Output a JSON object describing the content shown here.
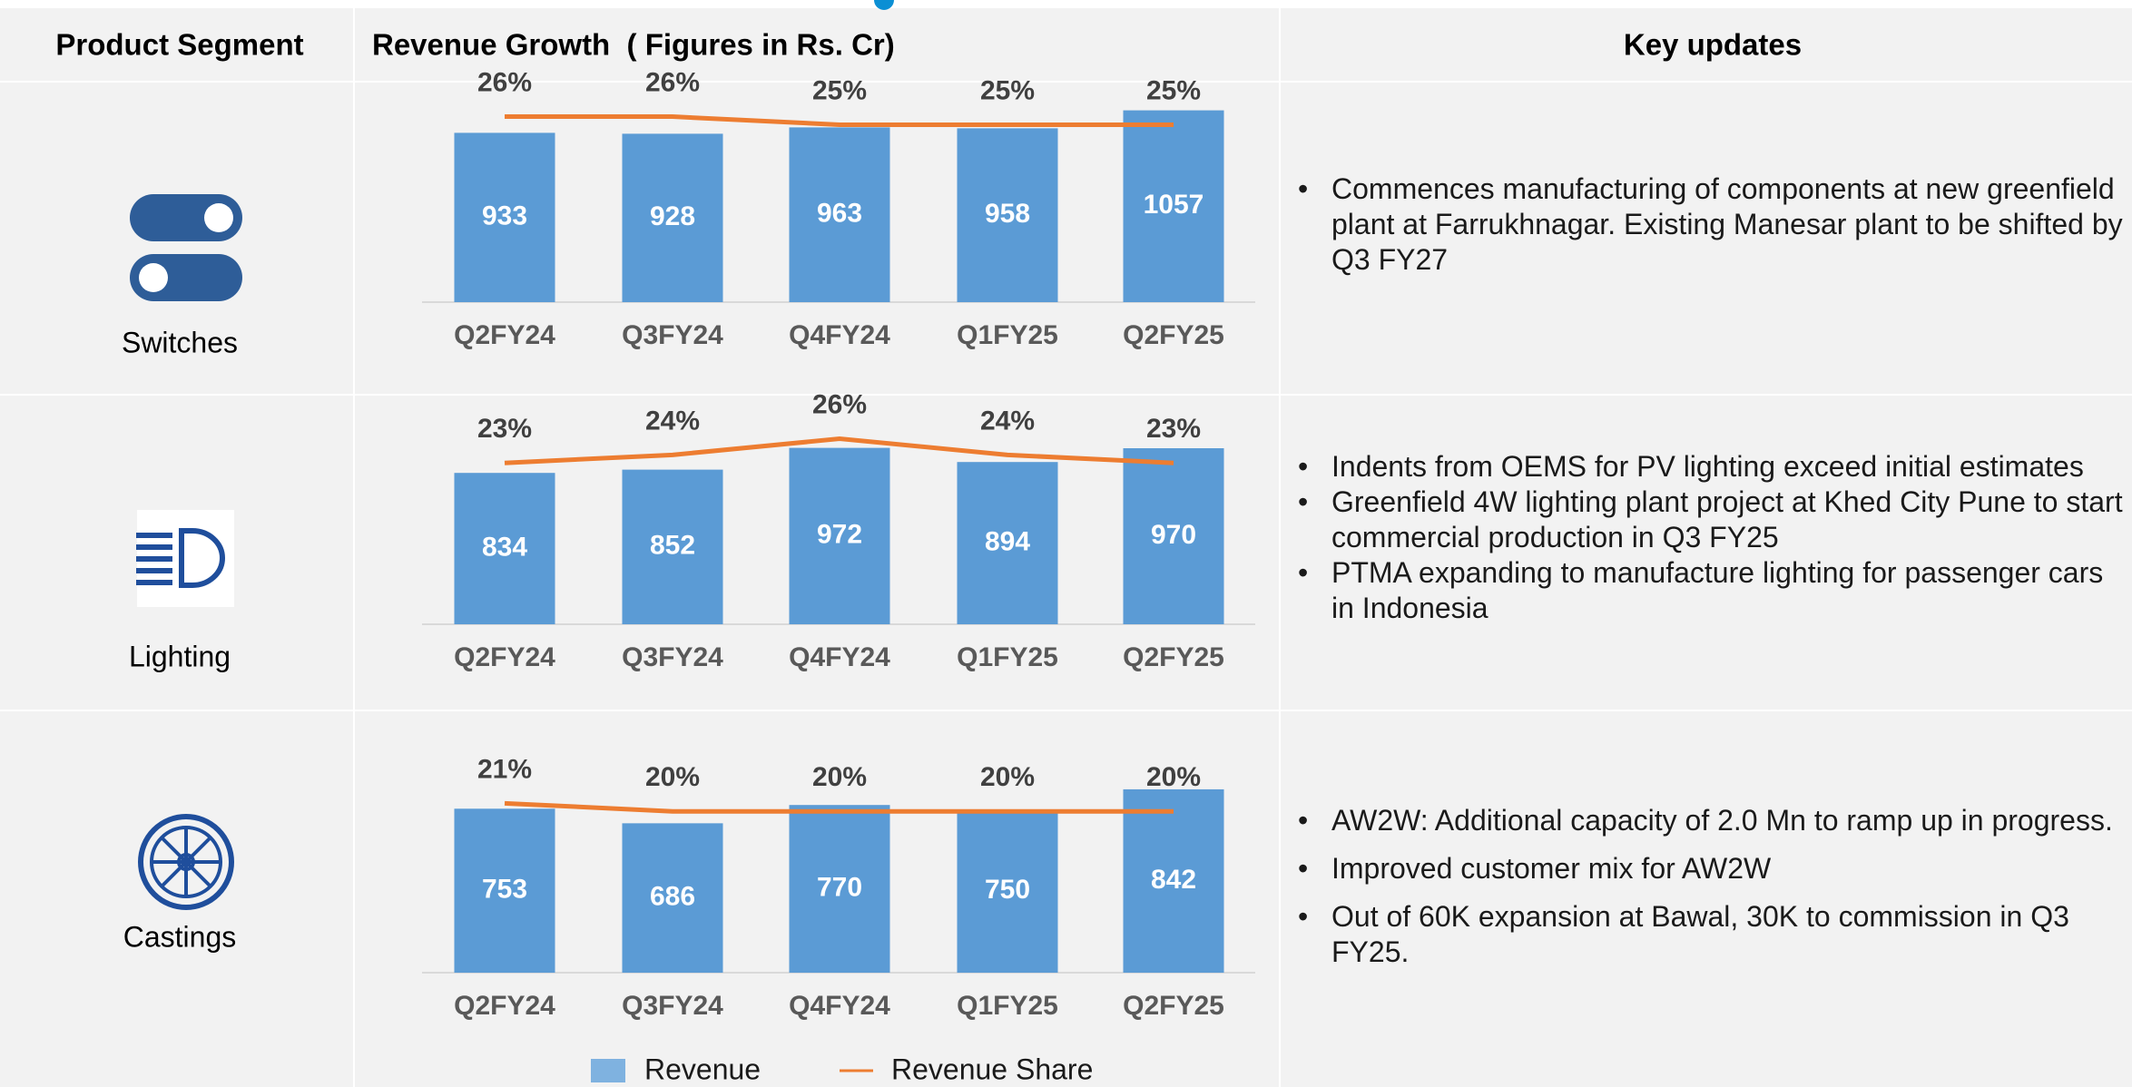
{
  "header": {
    "segment": "Product Segment",
    "growth": "Revenue Growth  ( Figures in Rs. Cr)",
    "updates": "Key updates"
  },
  "chart_data": [
    {
      "type": "bar",
      "segment": "Switches",
      "categories": [
        "Q2FY24",
        "Q3FY24",
        "Q4FY24",
        "Q1FY25",
        "Q2FY25"
      ],
      "ylim": [
        0,
        1200
      ],
      "y2lim": [
        3,
        30
      ],
      "series": [
        {
          "name": "Revenue",
          "color": "#5b9bd5",
          "values": [
            933,
            928,
            963,
            958,
            1057
          ]
        },
        {
          "name": "Revenue Share",
          "type": "line",
          "axis": "y2",
          "color": "#ed7d31",
          "values": [
            26,
            26,
            25,
            25,
            25
          ],
          "value_labels": [
            "26%",
            "26%",
            "25%",
            "25%",
            "25%"
          ]
        }
      ],
      "key_updates": [
        "Commences manufacturing of components at new greenfield plant at Farrukhnagar. Existing Manesar plant to be shifted by Q3 FY27"
      ]
    },
    {
      "type": "bar",
      "segment": "Lighting",
      "categories": [
        "Q2FY24",
        "Q3FY24",
        "Q4FY24",
        "Q1FY25",
        "Q2FY25"
      ],
      "ylim": [
        0,
        1200
      ],
      "y2lim": [
        3,
        30
      ],
      "series": [
        {
          "name": "Revenue",
          "color": "#5b9bd5",
          "values": [
            834,
            852,
            972,
            894,
            970
          ]
        },
        {
          "name": "Revenue Share",
          "type": "line",
          "axis": "y2",
          "color": "#ed7d31",
          "values": [
            23,
            24,
            26,
            24,
            23
          ],
          "value_labels": [
            "23%",
            "24%",
            "26%",
            "24%",
            "23%"
          ]
        }
      ],
      "key_updates": [
        "Indents from OEMS for PV lighting exceed initial estimates",
        "Greenfield 4W lighting plant project at Khed City Pune to start commercial production in Q3 FY25",
        "PTMA expanding to manufacture lighting for passenger cars in Indonesia"
      ]
    },
    {
      "type": "bar",
      "segment": "Castings",
      "categories": [
        "Q2FY24",
        "Q3FY24",
        "Q4FY24",
        "Q1FY25",
        "Q2FY25"
      ],
      "ylim": [
        0,
        1000
      ],
      "y2lim": [
        0,
        27
      ],
      "series": [
        {
          "name": "Revenue",
          "color": "#5b9bd5",
          "values": [
            753,
            686,
            770,
            750,
            842
          ]
        },
        {
          "name": "Revenue Share",
          "type": "line",
          "axis": "y2",
          "color": "#ed7d31",
          "values": [
            21,
            20,
            20,
            20,
            20
          ],
          "value_labels": [
            "21%",
            "20%",
            "20%",
            "20%",
            "20%"
          ]
        }
      ],
      "key_updates": [
        "AW2W: Additional capacity of 2.0 Mn to ramp up in progress.",
        "Improved customer mix for AW2W",
        "Out of 60K expansion at Bawal, 30K to commission in Q3 FY25."
      ]
    }
  ]
}
